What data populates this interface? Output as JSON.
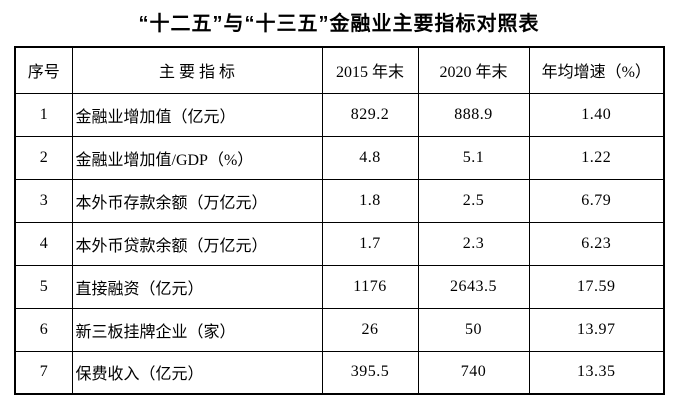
{
  "page": {
    "background": "#ffffff",
    "text_color": "#000000",
    "border_color": "#000000"
  },
  "table": {
    "title": "“十二五”与“十三五”金融业主要指标对照表",
    "headers": [
      "序号",
      "主 要 指 标",
      "2015 年末",
      "2020 年末",
      "年均增速（%）"
    ],
    "rows": [
      {
        "seq": "1",
        "indicator": "金融业增加值（亿元）",
        "end2015": "829.2",
        "end2020": "888.9",
        "cagr": "1.40"
      },
      {
        "seq": "2",
        "indicator": "金融业增加值/GDP（%）",
        "end2015": "4.8",
        "end2020": "5.1",
        "cagr": "1.22"
      },
      {
        "seq": "3",
        "indicator": "本外币存款余额（万亿元）",
        "end2015": "1.8",
        "end2020": "2.5",
        "cagr": "6.79"
      },
      {
        "seq": "4",
        "indicator": "本外币贷款余额（万亿元）",
        "end2015": "1.7",
        "end2020": "2.3",
        "cagr": "6.23"
      },
      {
        "seq": "5",
        "indicator": "直接融资（亿元）",
        "end2015": "1176",
        "end2020": "2643.5",
        "cagr": "17.59"
      },
      {
        "seq": "6",
        "indicator": "新三板挂牌企业（家）",
        "end2015": "26",
        "end2020": "50",
        "cagr": "13.97"
      },
      {
        "seq": "7",
        "indicator": "保费收入（亿元）",
        "end2015": "395.5",
        "end2020": "740",
        "cagr": "13.35"
      }
    ]
  },
  "chart_data": {
    "type": "table",
    "title": "“十二五”与“十三五”金融业主要指标对照表",
    "columns": [
      "序号",
      "主要指标",
      "2015年末",
      "2020年末",
      "年均增速（%）"
    ],
    "rows": [
      [
        "1",
        "金融业增加值（亿元）",
        829.2,
        888.9,
        1.4
      ],
      [
        "2",
        "金融业增加值/GDP（%）",
        4.8,
        5.1,
        1.22
      ],
      [
        "3",
        "本外币存款余额（万亿元）",
        1.8,
        2.5,
        6.79
      ],
      [
        "4",
        "本外币贷款余额（万亿元）",
        1.7,
        2.3,
        6.23
      ],
      [
        "5",
        "直接融资（亿元）",
        1176,
        2643.5,
        17.59
      ],
      [
        "6",
        "新三板挂牌企业（家）",
        26,
        50,
        13.97
      ],
      [
        "7",
        "保费收入（亿元）",
        395.5,
        740,
        13.35
      ]
    ]
  }
}
